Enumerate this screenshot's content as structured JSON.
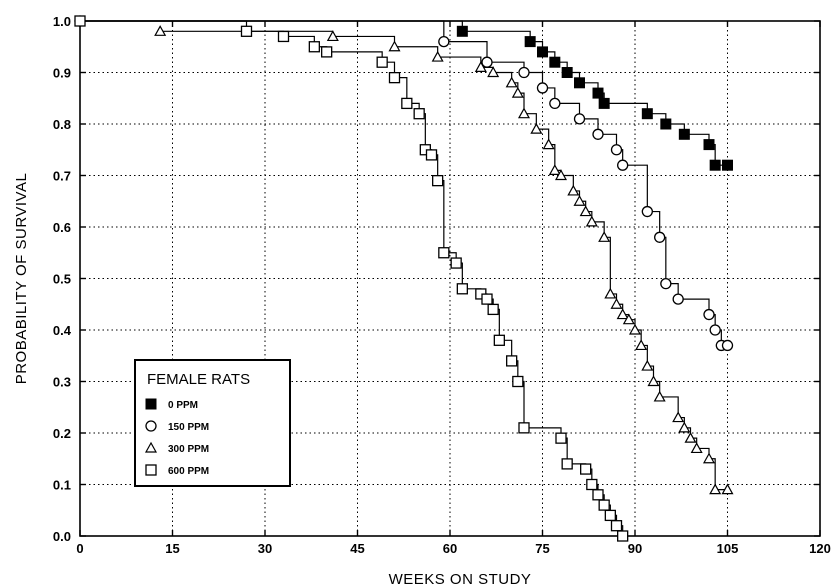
{
  "chart_data": {
    "type": "line",
    "step": true,
    "xlabel": "WEEKS ON STUDY",
    "ylabel": "PROBABILITY OF SURVIVAL",
    "xlim": [
      0,
      120
    ],
    "ylim": [
      0.0,
      1.0
    ],
    "xticks": [
      0,
      15,
      30,
      45,
      60,
      75,
      90,
      105,
      120
    ],
    "yticks": [
      0.0,
      0.1,
      0.2,
      0.3,
      0.4,
      0.5,
      0.6,
      0.7,
      0.8,
      0.9,
      1.0
    ],
    "xtick_labels": [
      "0",
      "15",
      "30",
      "45",
      "60",
      "75",
      "90",
      "105",
      "120"
    ],
    "ytick_labels": [
      "0.0",
      "0.1",
      "0.2",
      "0.3",
      "0.4",
      "0.5",
      "0.6",
      "0.7",
      "0.8",
      "0.9",
      "1.0"
    ],
    "grid": true,
    "legend": {
      "title": "FEMALE RATS",
      "position": "bottom-left"
    },
    "series": [
      {
        "name": "0 PPM",
        "marker": "filled-square",
        "points": [
          [
            0,
            1.0
          ],
          [
            62,
            0.98
          ],
          [
            73,
            0.96
          ],
          [
            75,
            0.94
          ],
          [
            77,
            0.92
          ],
          [
            79,
            0.9
          ],
          [
            81,
            0.88
          ],
          [
            84,
            0.86
          ],
          [
            85,
            0.84
          ],
          [
            92,
            0.82
          ],
          [
            95,
            0.8
          ],
          [
            98,
            0.78
          ],
          [
            102,
            0.76
          ],
          [
            103,
            0.72
          ],
          [
            105,
            0.72
          ]
        ]
      },
      {
        "name": "150 PPM",
        "marker": "circle",
        "points": [
          [
            0,
            1.0
          ],
          [
            59,
            0.96
          ],
          [
            66,
            0.92
          ],
          [
            72,
            0.9
          ],
          [
            75,
            0.87
          ],
          [
            77,
            0.84
          ],
          [
            81,
            0.81
          ],
          [
            84,
            0.78
          ],
          [
            87,
            0.75
          ],
          [
            88,
            0.72
          ],
          [
            92,
            0.63
          ],
          [
            94,
            0.58
          ],
          [
            95,
            0.49
          ],
          [
            97,
            0.46
          ],
          [
            102,
            0.43
          ],
          [
            103,
            0.4
          ],
          [
            104,
            0.37
          ],
          [
            105,
            0.37
          ]
        ]
      },
      {
        "name": "300 PPM",
        "marker": "triangle",
        "points": [
          [
            13,
            0.98
          ],
          [
            41,
            0.97
          ],
          [
            51,
            0.95
          ],
          [
            58,
            0.93
          ],
          [
            65,
            0.91
          ],
          [
            67,
            0.9
          ],
          [
            70,
            0.88
          ],
          [
            71,
            0.86
          ],
          [
            72,
            0.82
          ],
          [
            74,
            0.79
          ],
          [
            76,
            0.76
          ],
          [
            77,
            0.71
          ],
          [
            78,
            0.7
          ],
          [
            80,
            0.67
          ],
          [
            81,
            0.65
          ],
          [
            82,
            0.63
          ],
          [
            83,
            0.61
          ],
          [
            85,
            0.58
          ],
          [
            86,
            0.47
          ],
          [
            87,
            0.45
          ],
          [
            88,
            0.43
          ],
          [
            89,
            0.42
          ],
          [
            90,
            0.4
          ],
          [
            91,
            0.37
          ],
          [
            92,
            0.33
          ],
          [
            93,
            0.3
          ],
          [
            94,
            0.27
          ],
          [
            97,
            0.23
          ],
          [
            98,
            0.21
          ],
          [
            99,
            0.19
          ],
          [
            100,
            0.17
          ],
          [
            102,
            0.15
          ],
          [
            103,
            0.09
          ],
          [
            105,
            0.09
          ]
        ]
      },
      {
        "name": "600 PPM",
        "marker": "open-square",
        "points": [
          [
            0,
            1.0
          ],
          [
            27,
            0.98
          ],
          [
            33,
            0.97
          ],
          [
            38,
            0.95
          ],
          [
            40,
            0.94
          ],
          [
            49,
            0.92
          ],
          [
            51,
            0.89
          ],
          [
            53,
            0.84
          ],
          [
            55,
            0.82
          ],
          [
            56,
            0.75
          ],
          [
            57,
            0.74
          ],
          [
            58,
            0.69
          ],
          [
            59,
            0.55
          ],
          [
            61,
            0.53
          ],
          [
            62,
            0.48
          ],
          [
            65,
            0.47
          ],
          [
            66,
            0.46
          ],
          [
            67,
            0.44
          ],
          [
            68,
            0.38
          ],
          [
            70,
            0.34
          ],
          [
            71,
            0.3
          ],
          [
            72,
            0.21
          ],
          [
            78,
            0.19
          ],
          [
            79,
            0.14
          ],
          [
            82,
            0.13
          ],
          [
            83,
            0.1
          ],
          [
            84,
            0.08
          ],
          [
            85,
            0.06
          ],
          [
            86,
            0.04
          ],
          [
            87,
            0.02
          ],
          [
            88,
            0.0
          ]
        ]
      }
    ]
  }
}
